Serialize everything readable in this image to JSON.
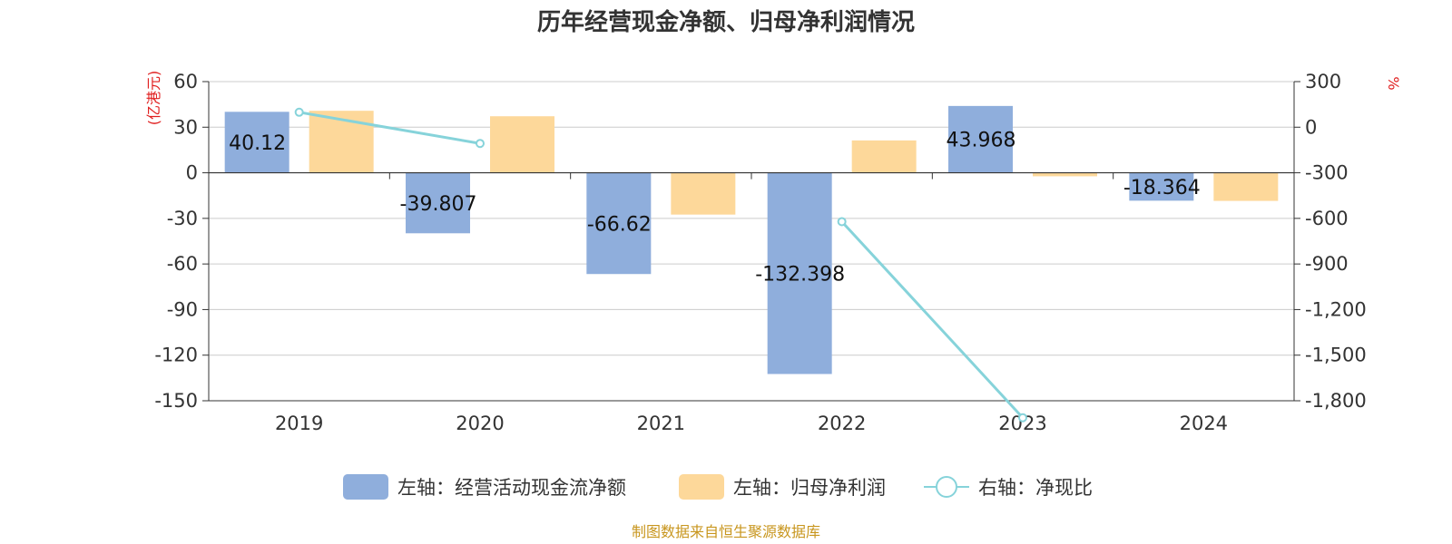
{
  "chart_data": {
    "type": "bar",
    "title": "历年经营现金净额、归母净利润情况",
    "categories": [
      "2019",
      "2020",
      "2021",
      "2022",
      "2023",
      "2024"
    ],
    "series": [
      {
        "name": "左轴：经营活动现金流净额",
        "axis": "left",
        "type": "bar",
        "color": "#8faedc",
        "values": [
          40.12,
          -39.807,
          -66.62,
          -132.398,
          43.968,
          -18.364
        ]
      },
      {
        "name": "左轴：归母净利润",
        "axis": "left",
        "type": "bar",
        "color": "#fdd89a",
        "values": [
          40.8,
          37.2,
          -27.5,
          21.3,
          -2.3,
          -18.5
        ]
      },
      {
        "name": "右轴：净现比",
        "axis": "right",
        "type": "line",
        "color": "#86d3da",
        "values": [
          98.3,
          -107.0,
          null,
          -621.5,
          -1911.6,
          null
        ]
      }
    ],
    "left_axis": {
      "unit": "(亿港元)",
      "ylim": [
        -150,
        60
      ],
      "ticks": [
        "60",
        "30",
        "0",
        "-30",
        "-60",
        "-90",
        "-120",
        "-150"
      ]
    },
    "right_axis": {
      "unit": "%",
      "ylim": [
        -1800,
        300
      ],
      "ticks": [
        "300",
        "0",
        "-300",
        "-600",
        "-900",
        "-1,200",
        "-1,500",
        "-1,800"
      ]
    },
    "data_labels": [
      "40.12",
      "-39.807",
      "-66.62",
      "-132.398",
      "43.968",
      "-18.364"
    ],
    "legend_position": "bottom",
    "grid": true
  },
  "source_text": "制图数据来自恒生聚源数据库",
  "colors": {
    "accent_red": "#e02020",
    "source": "#c8961e",
    "axis": "#333333",
    "grid": "#cccccc"
  }
}
